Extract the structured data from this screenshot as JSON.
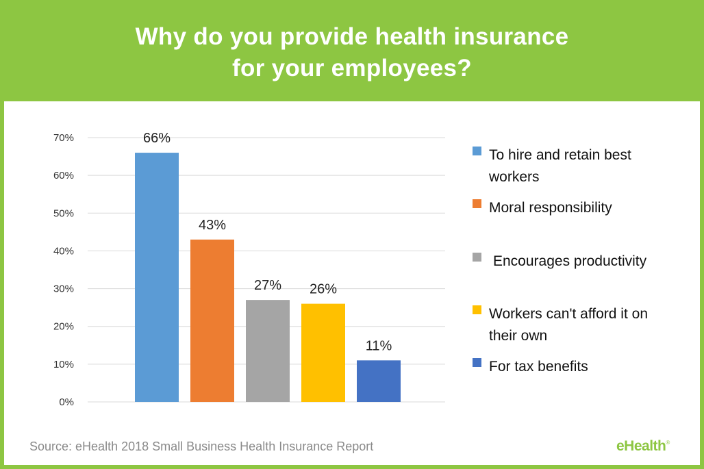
{
  "title_lines": [
    "Why do you provide health insurance",
    "for your employees?"
  ],
  "source": "Source: eHealth 2018 Small Business Health Insurance Report",
  "logo": {
    "text": "eHealth",
    "mark": "®"
  },
  "colors": {
    "brand_green": "#8dc642",
    "gridline": "#d9d9d9"
  },
  "chart_data": {
    "type": "bar",
    "title": "Why do you provide health insurance for your employees?",
    "xlabel": "",
    "ylabel": "",
    "ylim": [
      0,
      70
    ],
    "yticks": [
      "0%",
      "10%",
      "20%",
      "30%",
      "40%",
      "50%",
      "60%",
      "70%"
    ],
    "grid": true,
    "legend_position": "right",
    "categories": [
      "To hire and retain best workers",
      "Moral responsibility",
      "Encourages productivity",
      "Workers can't afford it on their own",
      "For tax benefits"
    ],
    "values": [
      66,
      43,
      27,
      26,
      11
    ],
    "data_labels": [
      "66%",
      "43%",
      "27%",
      "26%",
      "11%"
    ],
    "bar_colors": [
      "#5b9bd5",
      "#ed7d31",
      "#a5a5a5",
      "#ffc000",
      "#4472c4"
    ],
    "legend": [
      {
        "lines": [
          "To hire and retain best",
          "workers"
        ],
        "color": "#5b9bd5"
      },
      {
        "lines": [
          "Moral responsibility"
        ],
        "color": "#ed7d31"
      },
      {
        "lines": [
          "Encourages productivity"
        ],
        "color": "#a5a5a5"
      },
      {
        "lines": [
          "Workers can't afford it on",
          "their own"
        ],
        "color": "#ffc000"
      },
      {
        "lines": [
          "For tax benefits"
        ],
        "color": "#4472c4"
      }
    ]
  }
}
